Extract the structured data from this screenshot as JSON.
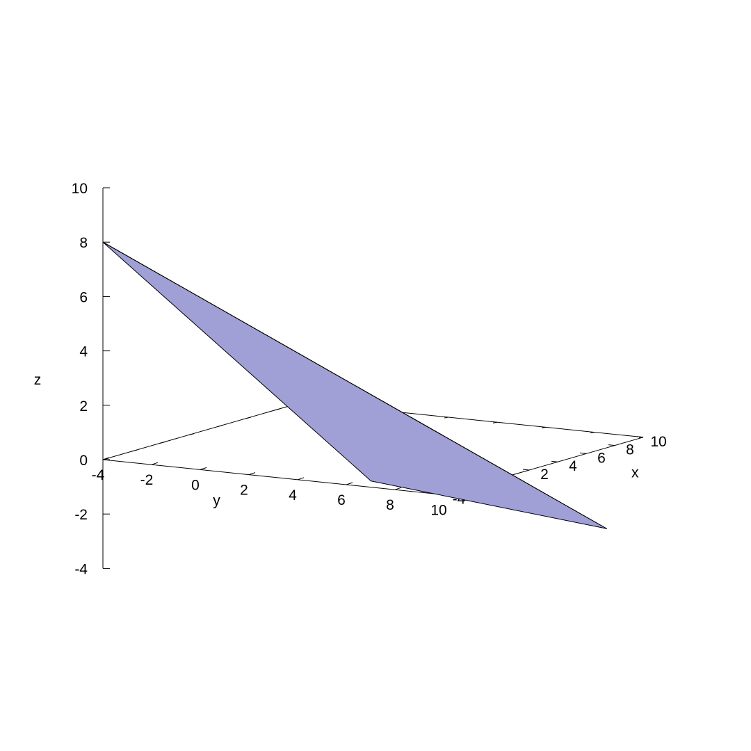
{
  "chart_data": {
    "type": "surface3d",
    "title": "",
    "xlabel": "x",
    "ylabel": "y",
    "zlabel": "z",
    "xlim": [
      -4,
      10
    ],
    "ylim": [
      -4,
      10
    ],
    "zlim": [
      -4,
      10
    ],
    "x_ticks": [
      "-4",
      "-2",
      "0",
      "2",
      "4",
      "6",
      "8",
      "10"
    ],
    "y_ticks": [
      "-4",
      "-2",
      "0",
      "2",
      "4",
      "6",
      "8",
      "10"
    ],
    "z_ticks": [
      "10",
      "8",
      "6",
      "4",
      "2",
      "0",
      "-2",
      "-4"
    ],
    "surface_color": "#a0a0d6",
    "grid": false,
    "legend": "none",
    "vertices": [
      {
        "x": -4,
        "y": -4,
        "z": 8
      },
      {
        "x": 5,
        "y": 3,
        "z": 0
      },
      {
        "x": 2,
        "y": 3.5,
        "z": -1
      },
      {
        "x": 10,
        "y": 8.5,
        "z": -3.5
      }
    ],
    "faces": [
      [
        0,
        1,
        3
      ],
      [
        0,
        2,
        3
      ]
    ]
  }
}
